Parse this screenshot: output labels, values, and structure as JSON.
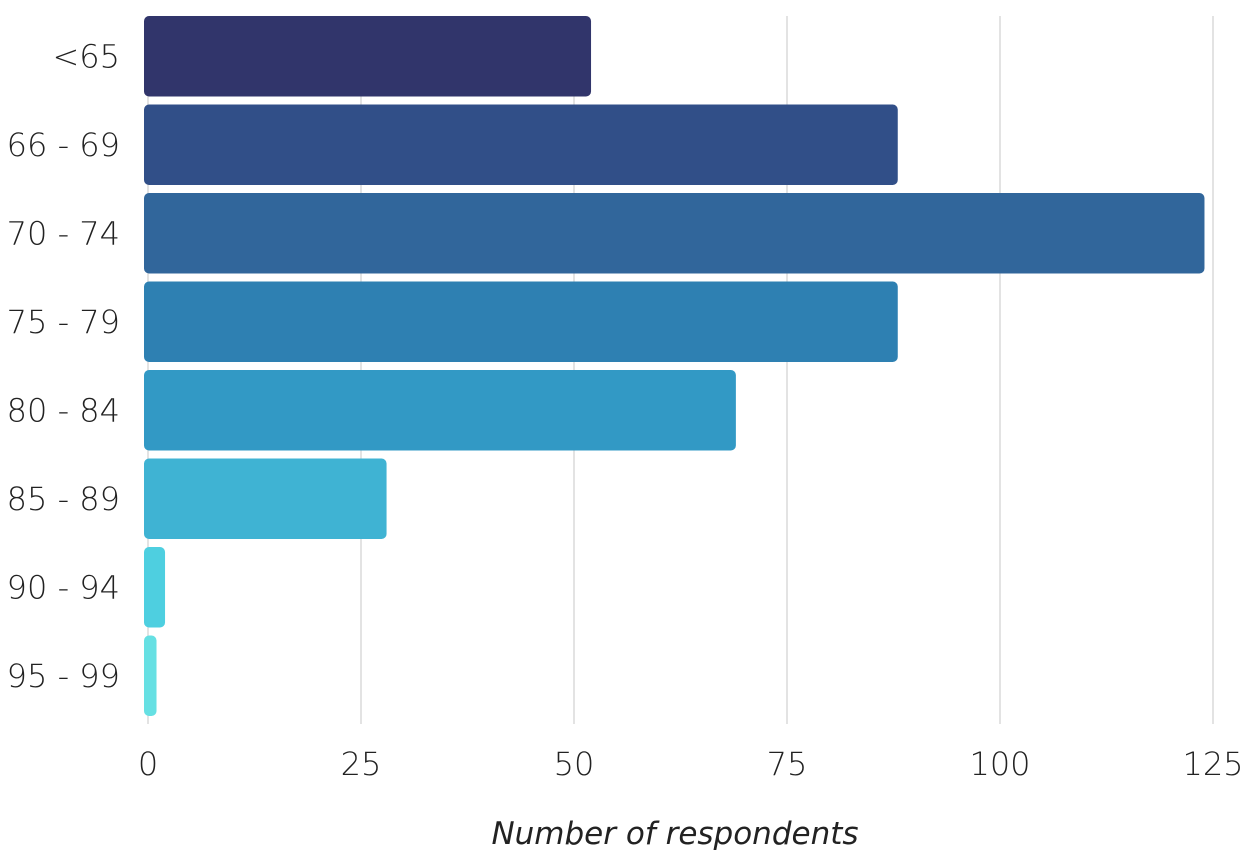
{
  "chart_data": {
    "type": "bar",
    "orientation": "horizontal",
    "categories": [
      "<65",
      "66 - 69",
      "70 - 74",
      "75 - 79",
      "80 - 84",
      "85 - 89",
      "90 - 94",
      "95 - 99"
    ],
    "values": [
      52,
      88,
      124,
      88,
      69,
      28,
      2,
      1
    ],
    "colors": [
      "#31356b",
      "#314f88",
      "#31669b",
      "#2e80b2",
      "#3299c5",
      "#3fb3d3",
      "#4ecfe0",
      "#66e0e3"
    ],
    "xlabel": "Number of respondents",
    "ylabel": "",
    "title": "",
    "xlim": [
      0,
      125
    ],
    "xticks": [
      0,
      25,
      50,
      75,
      100,
      125
    ],
    "grid": "vertical",
    "legend": "none"
  }
}
